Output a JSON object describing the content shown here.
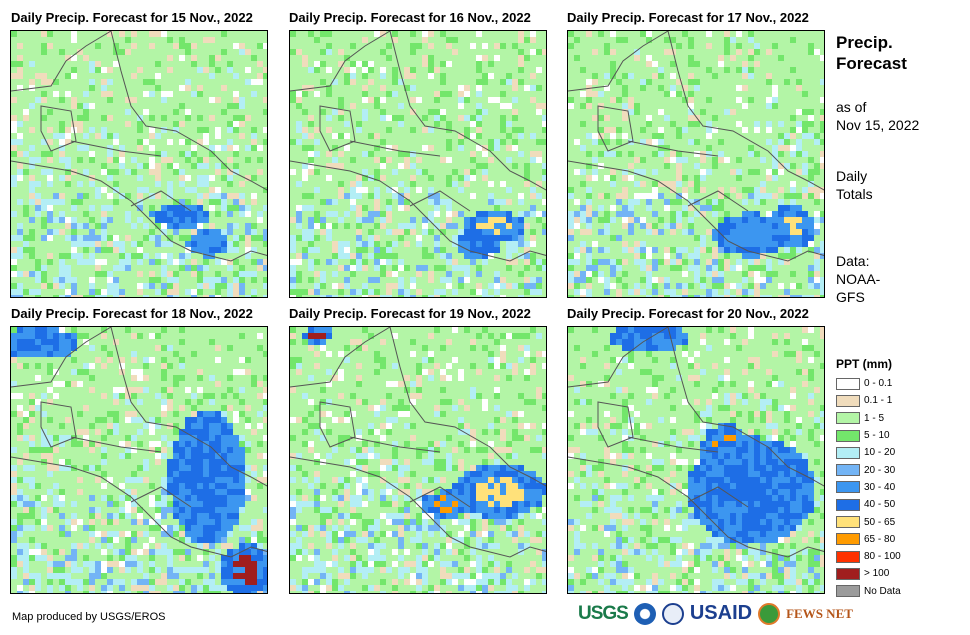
{
  "panels": [
    {
      "title": "Daily Precip. Forecast for 15 Nov., 2022"
    },
    {
      "title": "Daily Precip. Forecast for 16 Nov., 2022"
    },
    {
      "title": "Daily Precip. Forecast for 17 Nov., 2022"
    },
    {
      "title": "Daily Precip. Forecast for 18 Nov., 2022"
    },
    {
      "title": "Daily Precip. Forecast for 19 Nov., 2022"
    },
    {
      "title": "Daily Precip. Forecast for 20 Nov., 2022"
    }
  ],
  "side": {
    "title_line1": "Precip.",
    "title_line2": "Forecast",
    "asof_line1": "as of",
    "asof_line2": "Nov 15, 2022",
    "daily_line1": "Daily",
    "daily_line2": "Totals",
    "data_line1": "Data:",
    "data_line2": "NOAA-",
    "data_line3": "GFS"
  },
  "legend": {
    "title": "PPT (mm)",
    "items": [
      {
        "label": "0 - 0.1",
        "color": "#ffffff"
      },
      {
        "label": "0.1 - 1",
        "color": "#f0dcbc"
      },
      {
        "label": "1 - 5",
        "color": "#b3f5a6"
      },
      {
        "label": "5 - 10",
        "color": "#73e66b"
      },
      {
        "label": "10 - 20",
        "color": "#b3eef5"
      },
      {
        "label": "20 - 30",
        "color": "#73b4f5"
      },
      {
        "label": "30 - 40",
        "color": "#3c96f0"
      },
      {
        "label": "40 - 50",
        "color": "#1e6ee6"
      },
      {
        "label": "50 - 65",
        "color": "#ffe17a"
      },
      {
        "label": "65 - 80",
        "color": "#ff9b00"
      },
      {
        "label": "80 - 100",
        "color": "#ff3200"
      },
      {
        "label": "> 100",
        "color": "#a01e1e"
      },
      {
        "label": "No Data",
        "color": "#9b9b9b"
      }
    ]
  },
  "footer": {
    "credit": "Map produced by USGS/EROS",
    "logos": [
      "USGS",
      "USAID",
      "FEWS NET"
    ]
  }
}
